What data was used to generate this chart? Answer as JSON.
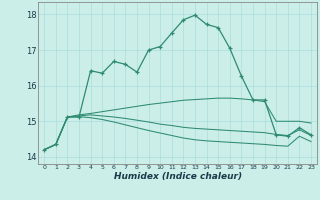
{
  "xlabel": "Humidex (Indice chaleur)",
  "bg_color": "#cceee8",
  "grid_color": "#aadddd",
  "line_color": "#2e8b72",
  "xlim": [
    -0.5,
    23.5
  ],
  "ylim": [
    13.8,
    18.35
  ],
  "yticks": [
    14,
    15,
    16,
    17,
    18
  ],
  "xticks": [
    0,
    1,
    2,
    3,
    4,
    5,
    6,
    7,
    8,
    9,
    10,
    11,
    12,
    13,
    14,
    15,
    16,
    17,
    18,
    19,
    20,
    21,
    22,
    23
  ],
  "line1_x": [
    0,
    1,
    2,
    3,
    4,
    5,
    6,
    7,
    8,
    9,
    10,
    11,
    12,
    13,
    14,
    15,
    16,
    17,
    18,
    19,
    20,
    21,
    22,
    23
  ],
  "line1_y": [
    14.2,
    14.35,
    15.12,
    15.12,
    16.42,
    16.35,
    16.68,
    16.6,
    16.38,
    17.0,
    17.1,
    17.48,
    17.85,
    17.98,
    17.72,
    17.63,
    17.05,
    16.27,
    15.6,
    15.6,
    14.62,
    14.58,
    14.82,
    14.62
  ],
  "line2_x": [
    0,
    1,
    2,
    3,
    4,
    5,
    6,
    7,
    8,
    9,
    10,
    11,
    12,
    13,
    14,
    15,
    16,
    17,
    18,
    19,
    20,
    21,
    22,
    23
  ],
  "line2_y": [
    14.2,
    14.35,
    15.12,
    15.18,
    15.22,
    15.27,
    15.32,
    15.37,
    15.42,
    15.47,
    15.51,
    15.55,
    15.59,
    15.61,
    15.63,
    15.65,
    15.65,
    15.63,
    15.6,
    15.55,
    15.0,
    15.0,
    15.0,
    14.95
  ],
  "line3_x": [
    0,
    1,
    2,
    3,
    4,
    5,
    6,
    7,
    8,
    9,
    10,
    11,
    12,
    13,
    14,
    15,
    16,
    17,
    18,
    19,
    20,
    21,
    22,
    23
  ],
  "line3_y": [
    14.2,
    14.35,
    15.12,
    15.15,
    15.18,
    15.15,
    15.12,
    15.08,
    15.03,
    14.98,
    14.92,
    14.88,
    14.83,
    14.8,
    14.78,
    14.76,
    14.74,
    14.72,
    14.7,
    14.68,
    14.63,
    14.6,
    14.76,
    14.6
  ],
  "line4_x": [
    0,
    1,
    2,
    3,
    4,
    5,
    6,
    7,
    8,
    9,
    10,
    11,
    12,
    13,
    14,
    15,
    16,
    17,
    18,
    19,
    20,
    21,
    22,
    23
  ],
  "line4_y": [
    14.2,
    14.35,
    15.12,
    15.13,
    15.1,
    15.05,
    14.98,
    14.9,
    14.82,
    14.74,
    14.67,
    14.6,
    14.53,
    14.48,
    14.45,
    14.43,
    14.41,
    14.39,
    14.37,
    14.35,
    14.32,
    14.3,
    14.58,
    14.43
  ]
}
